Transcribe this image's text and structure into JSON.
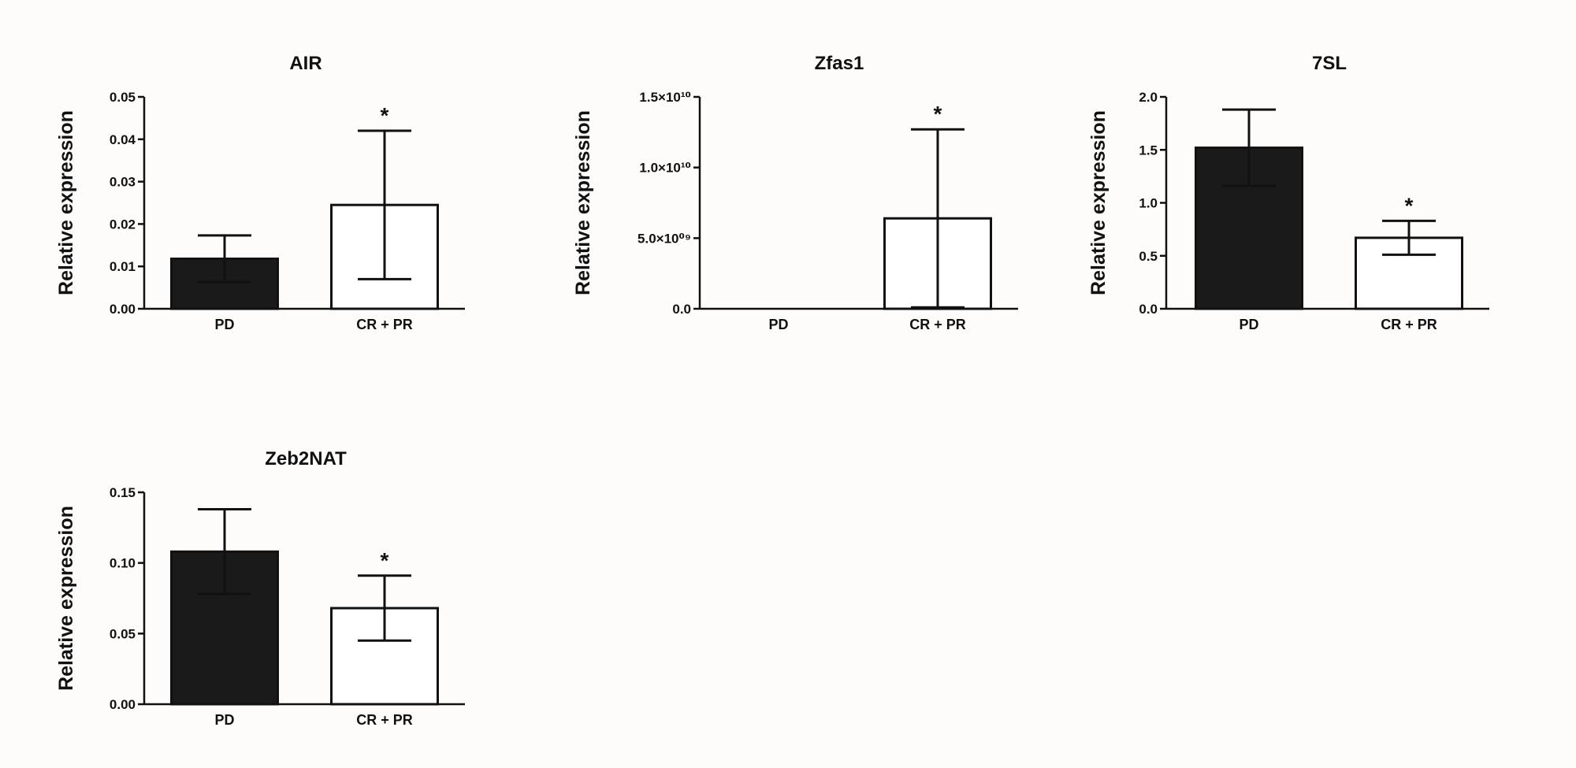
{
  "chart_data": [
    {
      "type": "bar",
      "title": "AIR",
      "ylabel": "Relative expression",
      "categories": [
        "PD",
        "CR + PR"
      ],
      "values": [
        0.0118,
        0.0245
      ],
      "errors": [
        0.0055,
        0.0175
      ],
      "bar_colors": [
        "#1a1a1a",
        "#ffffff"
      ],
      "significance": [
        "",
        "*"
      ],
      "ylim": [
        0,
        0.05
      ],
      "yticks": [
        0,
        0.01,
        0.02,
        0.03,
        0.04,
        0.05
      ],
      "yticklabels": [
        "0.00",
        "0.01",
        "0.02",
        "0.03",
        "0.04",
        "0.05"
      ]
    },
    {
      "type": "bar",
      "title": "Zfas1",
      "ylabel": "Relative expression",
      "categories": [
        "PD",
        "CR + PR"
      ],
      "values": [
        0,
        6400000000
      ],
      "errors": [
        0,
        6300000000
      ],
      "bar_colors": [
        "#1a1a1a",
        "#ffffff"
      ],
      "significance": [
        "",
        "*"
      ],
      "ylim": [
        0,
        15000000000
      ],
      "yticks": [
        0,
        5000000000,
        10000000000,
        15000000000
      ],
      "yticklabels": [
        "0.0",
        "5.0×10⁰⁹",
        "1.0×10¹⁰",
        "1.5×10¹⁰"
      ]
    },
    {
      "type": "bar",
      "title": "7SL",
      "ylabel": "Relative expression",
      "categories": [
        "PD",
        "CR + PR"
      ],
      "values": [
        1.52,
        0.67
      ],
      "errors": [
        0.36,
        0.16
      ],
      "bar_colors": [
        "#1a1a1a",
        "#ffffff"
      ],
      "significance": [
        "",
        "*"
      ],
      "ylim": [
        0,
        2.0
      ],
      "yticks": [
        0,
        0.5,
        1.0,
        1.5,
        2.0
      ],
      "yticklabels": [
        "0.0",
        "0.5",
        "1.0",
        "1.5",
        "2.0"
      ]
    },
    {
      "type": "bar",
      "title": "Zeb2NAT",
      "ylabel": "Relative expression",
      "categories": [
        "PD",
        "CR + PR"
      ],
      "values": [
        0.108,
        0.068
      ],
      "errors": [
        0.03,
        0.023
      ],
      "bar_colors": [
        "#1a1a1a",
        "#ffffff"
      ],
      "significance": [
        "",
        "*"
      ],
      "ylim": [
        0,
        0.15
      ],
      "yticks": [
        0,
        0.05,
        0.1,
        0.15
      ],
      "yticklabels": [
        "0.00",
        "0.05",
        "0.10",
        "0.15"
      ]
    }
  ]
}
